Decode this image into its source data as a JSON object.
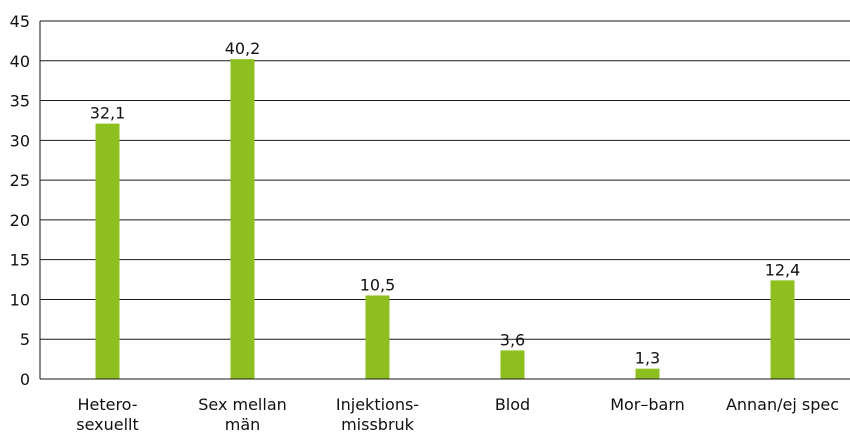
{
  "chart_data": {
    "type": "bar",
    "categories": [
      [
        "Hetero-",
        "sexuellt"
      ],
      [
        "Sex mellan",
        "män"
      ],
      [
        "Injektions-",
        "missbruk"
      ],
      [
        "Blod"
      ],
      [
        "Mor–barn"
      ],
      [
        "Annan/ej spec"
      ]
    ],
    "values": [
      32.1,
      40.2,
      10.5,
      3.6,
      1.3,
      12.4
    ],
    "data_labels": [
      "32,1",
      "40,2",
      "10,5",
      "3,6",
      "1,3",
      "12,4"
    ],
    "ylim": [
      0,
      45
    ],
    "yticks": [
      0,
      5,
      10,
      15,
      20,
      25,
      30,
      35,
      40,
      45
    ],
    "ytick_labels": [
      "0",
      "5",
      "10",
      "15",
      "20",
      "25",
      "30",
      "35",
      "40",
      "45"
    ],
    "grid": true,
    "title": "",
    "xlabel": "",
    "ylabel": "",
    "colors": {
      "bar": "#8dc01f",
      "grid": "#1a1a1a",
      "text": "#111111"
    }
  }
}
